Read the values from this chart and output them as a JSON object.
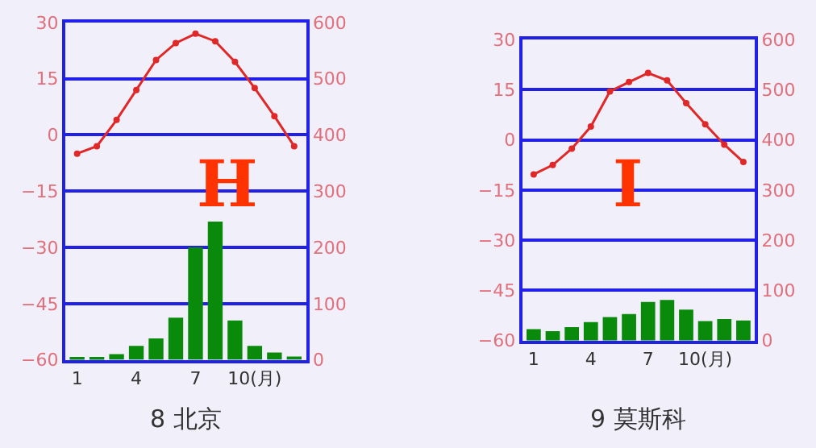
{
  "chart_data": [
    {
      "type": "bar",
      "title": "8 北京",
      "annotations": [
        "H"
      ],
      "categories": [
        "1",
        null,
        null,
        "4",
        null,
        null,
        "7",
        null,
        null,
        "10(月)",
        null,
        null
      ],
      "series": [
        {
          "type": "line",
          "color": "#e02828",
          "axis": "y",
          "marker": "circle",
          "values": [
            -5,
            -3,
            4,
            12,
            20,
            24.5,
            27,
            25,
            19.5,
            12.5,
            5,
            -3
          ]
        },
        {
          "color": "#0a8a0a",
          "axis": "y2",
          "values": [
            5,
            5,
            10,
            25,
            38,
            75,
            200,
            246,
            70,
            25,
            13,
            6
          ]
        }
      ],
      "ylim": [
        -60,
        30
      ],
      "yticks": [
        -60,
        -45,
        -30,
        -15,
        0,
        15,
        30
      ],
      "y2lim": [
        0,
        600
      ],
      "y2ticks": [
        0,
        100,
        200,
        300,
        400,
        500,
        600
      ],
      "grid": "y"
    },
    {
      "type": "bar",
      "title": "9 莫斯科",
      "annotations": [
        "I"
      ],
      "categories": [
        "1",
        null,
        null,
        "4",
        null,
        null,
        "7",
        null,
        null,
        "10(月)",
        null,
        null
      ],
      "series": [
        {
          "type": "line",
          "color": "#e02828",
          "axis": "y",
          "marker": "circle",
          "values": [
            -10.3,
            -7.5,
            -2.6,
            4,
            14.5,
            17.3,
            20,
            17.8,
            11,
            4.7,
            -1.4,
            -6.6
          ]
        },
        {
          "color": "#0a8a0a",
          "axis": "y2",
          "values": [
            23,
            19,
            27,
            37,
            47,
            53,
            77,
            81,
            62,
            39,
            43,
            40
          ]
        }
      ],
      "ylim": [
        -60,
        30
      ],
      "yticks": [
        -60,
        -45,
        -30,
        -15,
        0,
        15,
        30
      ],
      "y2lim": [
        0,
        600
      ],
      "y2ticks": [
        0,
        100,
        200,
        300,
        400,
        500,
        600
      ],
      "grid": "y"
    }
  ]
}
